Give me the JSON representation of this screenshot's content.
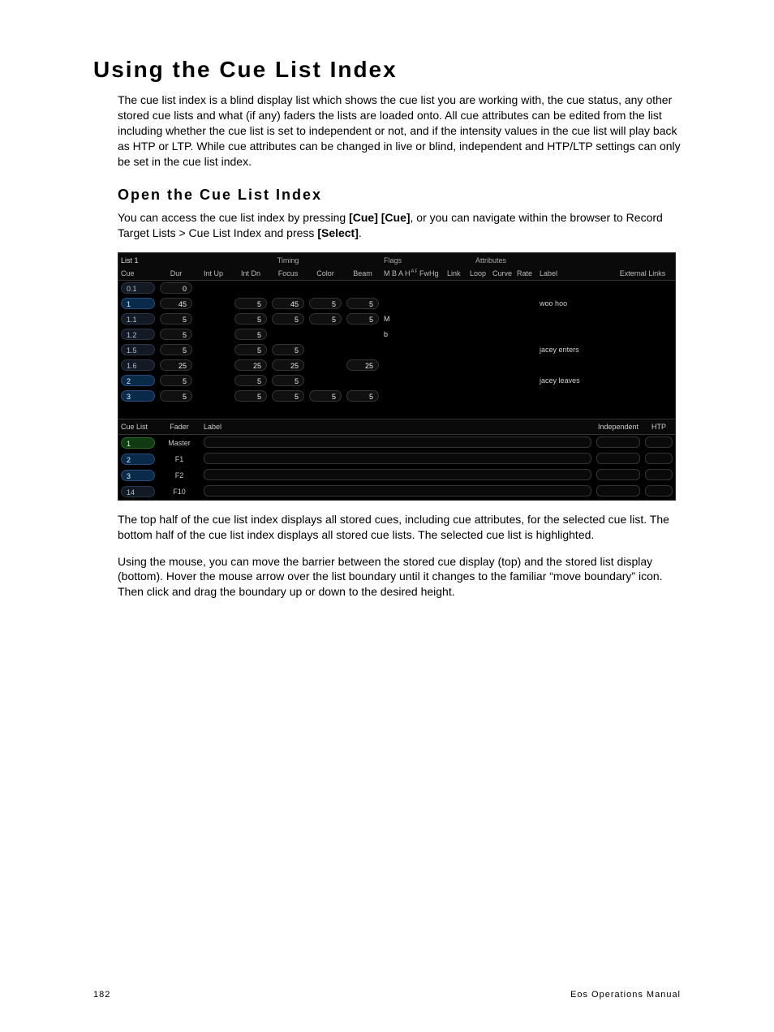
{
  "page": {
    "title": "Using the Cue List Index",
    "intro": "The cue list index is a blind display list which shows the cue list you are working with, the cue status, any other stored cue lists and what (if any) faders the lists are loaded onto. All cue attributes can be edited from the list including whether the cue list is set to independent or not, and if the intensity values in the cue list will play back as HTP or LTP. While cue attributes can be changed in live or blind, independent and HTP/LTP settings can only be set in the cue list index.",
    "sub1": "Open the Cue List Index",
    "p1a": "You can access the cue list index by pressing ",
    "p1b": "[Cue] [Cue]",
    "p1c": ", or you can navigate within the browser to Record Target Lists > Cue List Index and press ",
    "p1d": "[Select]",
    "p1e": ".",
    "p2": "The top half of the cue list index displays all stored cues, including cue attributes, for the selected cue list. The bottom half of the cue list index displays all stored cue lists. The selected cue list is highlighted.",
    "p3": "Using the mouse, you can move the barrier between the stored cue display (top) and the stored list display (bottom). Hover the mouse arrow over the list boundary until it changes to the familiar “move boundary” icon. Then click and drag the boundary up or down to the desired height.",
    "footerLeft": "182",
    "footerRight": "Eos Operations Manual"
  },
  "shot": {
    "listName": "List 1",
    "groups": {
      "timing": "Timing",
      "flags": "Flags",
      "attributes": "Attributes"
    },
    "topHeaders": [
      "Cue",
      "Dur",
      "Int Up",
      "Int Dn",
      "Focus",
      "Color",
      "Beam",
      "M B A H",
      "FwHg",
      "Link",
      "Loop",
      "Curve",
      "Rate",
      "Label",
      "External Links"
    ],
    "flagsSuper": "A P",
    "rows": [
      {
        "cue": "0.1",
        "cueCls": "cue-dark",
        "dur": "0",
        "intup": "",
        "intdn": "",
        "focus": "",
        "color": "",
        "beam": "",
        "flags": "",
        "label": ""
      },
      {
        "cue": "1",
        "cueCls": "cue-blue",
        "dur": "45",
        "intup": "",
        "intdn": "5",
        "focus": "45",
        "color": "5",
        "beam": "5",
        "flags": "",
        "label": "woo hoo"
      },
      {
        "cue": "1.1",
        "cueCls": "cue-dark",
        "dur": "5",
        "intup": "",
        "intdn": "5",
        "focus": "5",
        "color": "5",
        "beam": "5",
        "flags": "M",
        "label": ""
      },
      {
        "cue": "1.2",
        "cueCls": "cue-dark",
        "dur": "5",
        "intup": "",
        "intdn": "5",
        "focus": "",
        "color": "",
        "beam": "",
        "flags": "b",
        "label": ""
      },
      {
        "cue": "1.5",
        "cueCls": "cue-dark",
        "dur": "5",
        "intup": "",
        "intdn": "5",
        "focus": "5",
        "color": "",
        "beam": "",
        "flags": "",
        "label": "jacey enters"
      },
      {
        "cue": "1.6",
        "cueCls": "cue-dark",
        "dur": "25",
        "intup": "",
        "intdn": "25",
        "focus": "25",
        "color": "",
        "beam": "25",
        "flags": "",
        "label": ""
      },
      {
        "cue": "2",
        "cueCls": "cue-blue",
        "dur": "5",
        "intup": "",
        "intdn": "5",
        "focus": "5",
        "color": "",
        "beam": "",
        "flags": "",
        "label": "jacey leaves"
      },
      {
        "cue": "3",
        "cueCls": "cue-blue",
        "dur": "5",
        "intup": "",
        "intdn": "5",
        "focus": "5",
        "color": "5",
        "beam": "5",
        "flags": "",
        "label": ""
      }
    ],
    "botHeaders": {
      "cuelist": "Cue List",
      "fader": "Fader",
      "label": "Label",
      "independent": "Independent",
      "htp": "HTP"
    },
    "lists": [
      {
        "n": "1",
        "cls": "cue-green",
        "fader": "Master"
      },
      {
        "n": "2",
        "cls": "cue-blue",
        "fader": "F1"
      },
      {
        "n": "3",
        "cls": "cue-blue",
        "fader": "F2"
      },
      {
        "n": "14",
        "cls": "cue-dark",
        "fader": "F10"
      }
    ]
  }
}
